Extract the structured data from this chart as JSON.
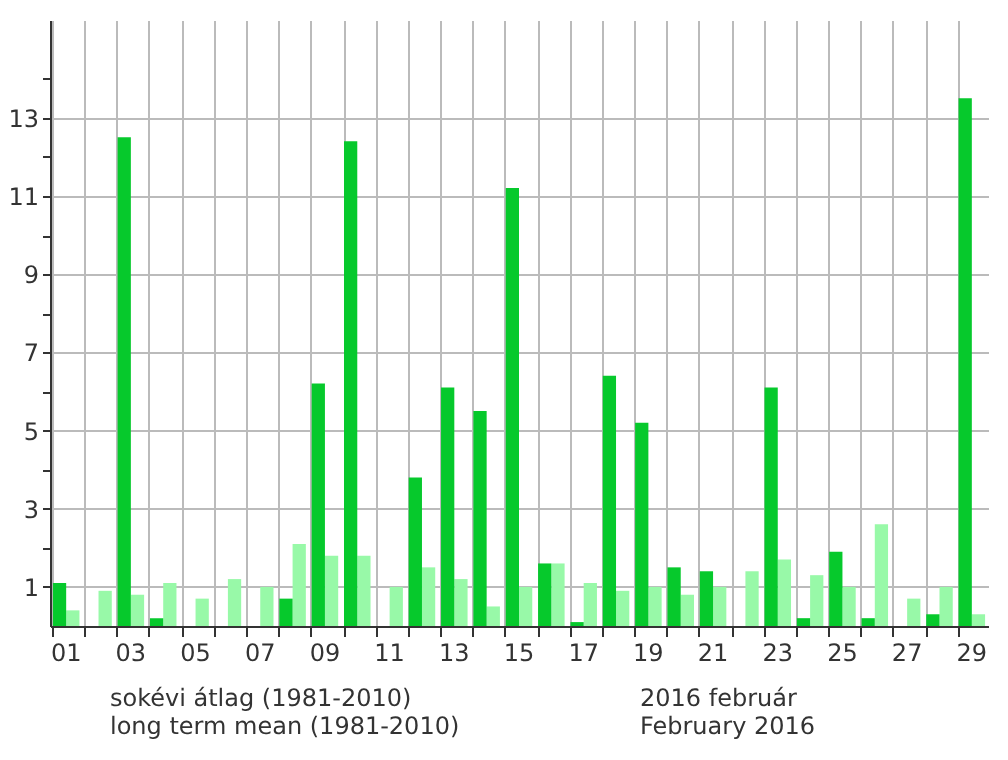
{
  "chart_data": {
    "type": "bar",
    "categories": [
      "01",
      null,
      "03",
      null,
      "05",
      null,
      "07",
      null,
      "09",
      null,
      "11",
      null,
      "13",
      null,
      "15",
      null,
      "17",
      null,
      "19",
      null,
      "21",
      null,
      "23",
      null,
      "25",
      null,
      "27",
      null,
      "29"
    ],
    "series": [
      {
        "name": "sokévi átlag (1981-2010)\nlong term mean (1981-2010)",
        "color": "#98f9a8",
        "values": [
          0.4,
          0.9,
          0.8,
          1.1,
          0.7,
          1.2,
          1.0,
          2.1,
          1.8,
          1.8,
          1.0,
          1.5,
          1.2,
          0.5,
          1.0,
          1.6,
          1.1,
          0.9,
          1.0,
          0.8,
          1.0,
          1.4,
          1.7,
          1.3,
          1.0,
          2.6,
          0.7,
          1.0,
          0.3
        ]
      },
      {
        "name": "2016 február\nFebruary 2016",
        "color": "#06c92c",
        "values": [
          1.1,
          0,
          12.5,
          0.2,
          0,
          0,
          0,
          0.7,
          6.2,
          12.4,
          0,
          3.8,
          6.1,
          5.5,
          11.2,
          1.6,
          0.1,
          6.4,
          5.2,
          1.5,
          1.4,
          0,
          6.1,
          0.2,
          1.9,
          0.2,
          0,
          0.3,
          13.5
        ]
      }
    ],
    "ylim": [
      0,
      15.5
    ],
    "yticks": [
      1,
      {
        "value": 2,
        "label": null
      },
      3,
      {
        "value": 4,
        "label": null
      },
      5,
      {
        "value": 6,
        "label": null
      },
      7,
      {
        "value": 8,
        "label": null
      },
      9,
      {
        "value": 10,
        "label": null
      },
      11,
      {
        "value": 12,
        "label": null
      },
      13,
      {
        "value": 14,
        "label": null
      }
    ],
    "grid": true,
    "legend": "bottom"
  }
}
